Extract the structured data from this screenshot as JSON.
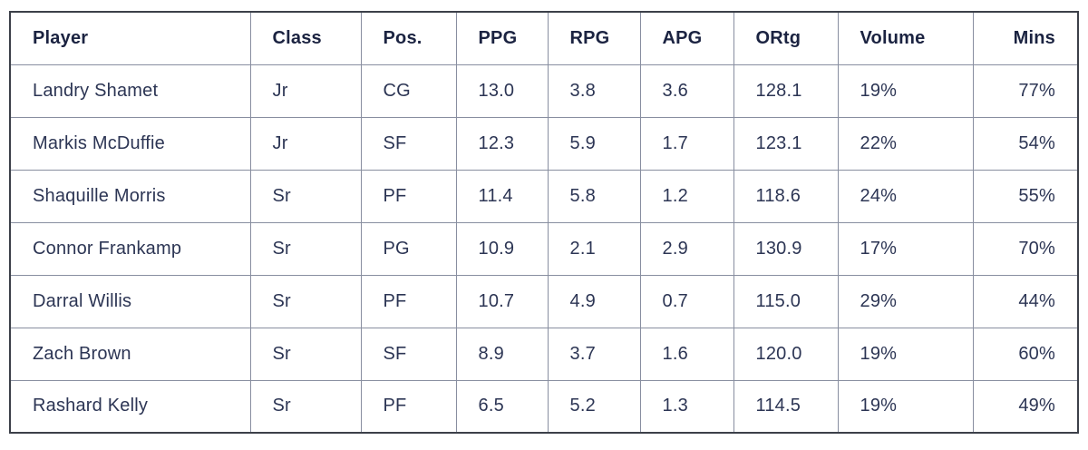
{
  "colors": {
    "header_text": "#1b2341",
    "body_text": "#2c3554",
    "inner_border": "#888ea0",
    "outer_border": "#3c4049",
    "background": "#ffffff"
  },
  "chart_data": {
    "type": "table",
    "title": "",
    "columns": [
      {
        "key": "player",
        "label": "Player",
        "align": "left"
      },
      {
        "key": "class",
        "label": "Class",
        "align": "left"
      },
      {
        "key": "pos",
        "label": "Pos.",
        "align": "left"
      },
      {
        "key": "ppg",
        "label": "PPG",
        "align": "left"
      },
      {
        "key": "rpg",
        "label": "RPG",
        "align": "left"
      },
      {
        "key": "apg",
        "label": "APG",
        "align": "left"
      },
      {
        "key": "ortg",
        "label": "ORtg",
        "align": "left"
      },
      {
        "key": "volume",
        "label": "Volume",
        "align": "left"
      },
      {
        "key": "mins",
        "label": "Mins",
        "align": "right"
      }
    ],
    "rows": [
      [
        "Landry Shamet",
        "Jr",
        "CG",
        "13.0",
        "3.8",
        "3.6",
        "128.1",
        "19%",
        "77%"
      ],
      [
        "Markis McDuffie",
        "Jr",
        "SF",
        "12.3",
        "5.9",
        "1.7",
        "123.1",
        "22%",
        "54%"
      ],
      [
        "Shaquille Morris",
        "Sr",
        "PF",
        "11.4",
        "5.8",
        "1.2",
        "118.6",
        "24%",
        "55%"
      ],
      [
        "Connor Frankamp",
        "Sr",
        "PG",
        "10.9",
        "2.1",
        "2.9",
        "130.9",
        "17%",
        "70%"
      ],
      [
        "Darral Willis",
        "Sr",
        "PF",
        "10.7",
        "4.9",
        "0.7",
        "115.0",
        "29%",
        "44%"
      ],
      [
        "Zach Brown",
        "Sr",
        "SF",
        "8.9",
        "3.7",
        "1.6",
        "120.0",
        "19%",
        "60%"
      ],
      [
        "Rashard Kelly",
        "Sr",
        "PF",
        "6.5",
        "5.2",
        "1.3",
        "114.5",
        "19%",
        "49%"
      ]
    ]
  }
}
